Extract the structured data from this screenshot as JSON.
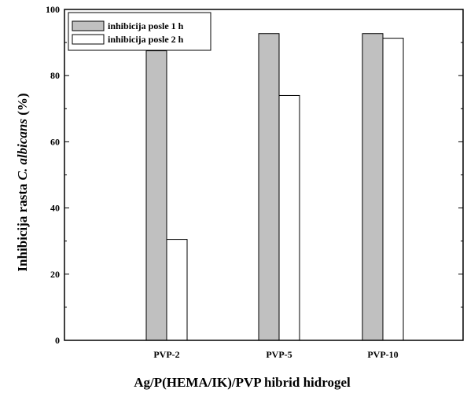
{
  "chart_data": {
    "type": "bar",
    "categories": [
      "PVP-2",
      "PVP-5",
      "PVP-10"
    ],
    "series": [
      {
        "name": "inhibicija posle 1 h",
        "values": [
          87.5,
          92.7,
          92.7
        ],
        "color": "#c0c0c0"
      },
      {
        "name": "inhibicija posle 2 h",
        "values": [
          30.5,
          74.0,
          91.3
        ],
        "color": "#ffffff"
      }
    ],
    "xlabel": "Ag/P(HEMA/IK)/PVP hibrid hidrogel",
    "ylabel": {
      "main": "Inhibicija rasta ",
      "italic": "C. albicans",
      "unit": " (%)"
    },
    "ylim": [
      0,
      100
    ],
    "yticks": [
      0,
      20,
      40,
      60,
      80,
      100
    ],
    "grid": false,
    "legend": "top-left"
  }
}
